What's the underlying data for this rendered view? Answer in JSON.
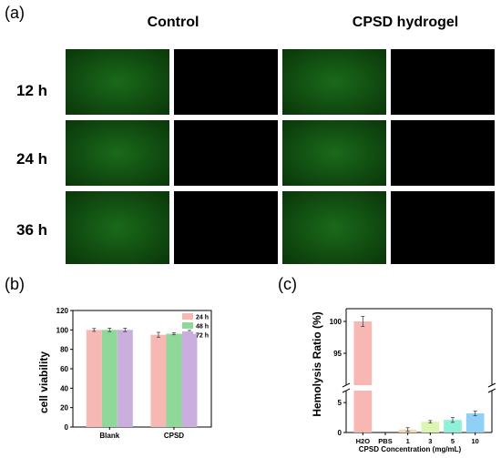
{
  "panels": {
    "a": "(a)",
    "b": "(b)",
    "c": "(c)"
  },
  "microscopy": {
    "columns": [
      "Control",
      "CPSD hydrogel"
    ],
    "rows": [
      "12 h",
      "24 h",
      "36 h"
    ]
  },
  "chart_data": [
    {
      "type": "bar",
      "panel": "(b)",
      "categories": [
        "Blank",
        "CPSD"
      ],
      "series": [
        {
          "name": "24 h",
          "values": [
            100,
            95
          ],
          "errors": [
            1.5,
            2.5
          ],
          "color": "#f7b7b3"
        },
        {
          "name": "48 h",
          "values": [
            100,
            96
          ],
          "errors": [
            1.8,
            1.0
          ],
          "color": "#8fd89a"
        },
        {
          "name": "72 h",
          "values": [
            100,
            96
          ],
          "errors": [
            1.8,
            3.5
          ],
          "color": "#c9aede"
        }
      ],
      "xlabel": "",
      "ylabel": "cell viability",
      "ylim": [
        0,
        120
      ],
      "yticks": [
        "0",
        "20",
        "40",
        "60",
        "80",
        "100",
        "120"
      ],
      "legend": "top-right"
    },
    {
      "type": "bar",
      "panel": "(c)",
      "categories": [
        "H2O",
        "PBS",
        "1",
        "3",
        "5",
        "10"
      ],
      "values": [
        100,
        0,
        0.5,
        1.8,
        2.1,
        3.2
      ],
      "errors": [
        0.8,
        0,
        0.3,
        0.2,
        0.4,
        0.4
      ],
      "colors": [
        "#f7b7b3",
        "#f7b7b3",
        "#f5d9b0",
        "#dcf5b0",
        "#8ff0d8",
        "#8fd0f5"
      ],
      "xlabel": "CPSD Concentration (mg/mL)",
      "ylabel": "Hemolysis Ratio (%)",
      "axis_break": true,
      "ylim_lower": [
        0,
        7
      ],
      "ylim_upper": [
        90,
        102
      ],
      "yticks": [
        "0",
        "5",
        "95",
        "100"
      ]
    }
  ]
}
